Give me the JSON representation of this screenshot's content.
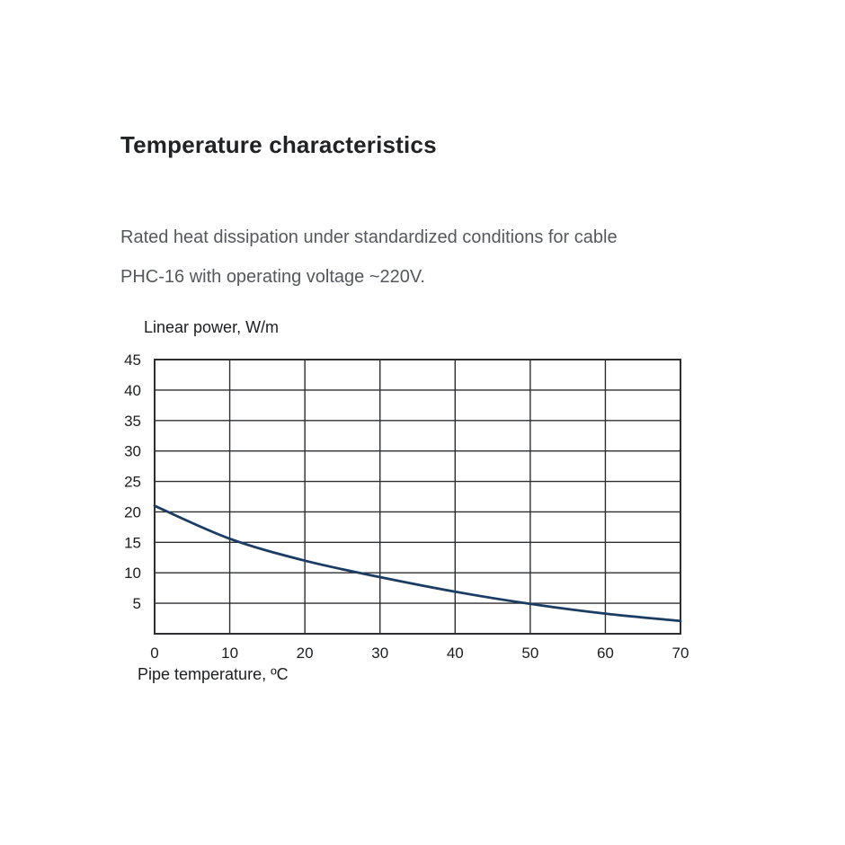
{
  "page": {
    "title": "Temperature characteristics",
    "description": {
      "line1": "Rated heat dissipation under standardized conditions for cable",
      "line2": "PHC-16 with operating voltage ~220V."
    }
  },
  "chart_data": {
    "type": "line",
    "title": "",
    "ylabel": "Linear power, W/m",
    "xlabel": "Pipe temperature, ºC",
    "x": [
      0,
      10,
      20,
      30,
      40,
      50,
      60,
      70
    ],
    "values": [
      21,
      15.6,
      12,
      9.3,
      6.9,
      4.9,
      3.3,
      2.1
    ],
    "xlim": [
      0,
      70
    ],
    "ylim": [
      0,
      45
    ],
    "xticks": [
      0,
      10,
      20,
      30,
      40,
      50,
      60,
      70
    ],
    "yticks": [
      5,
      10,
      15,
      20,
      25,
      30,
      35,
      40,
      45
    ],
    "grid": true,
    "legend": "none",
    "line_color": "#1b3d63",
    "grid_color": "#2e2f31",
    "border_color": "#2e2f31"
  }
}
